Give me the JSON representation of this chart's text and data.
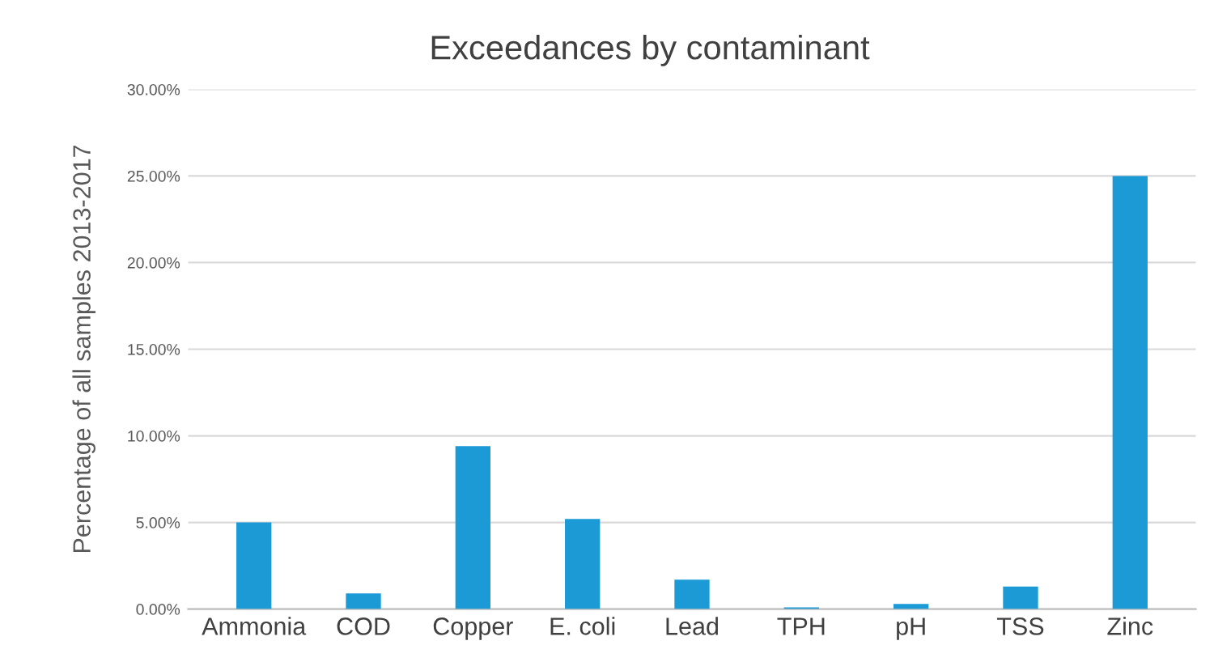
{
  "chart_data": {
    "type": "bar",
    "title": "Exceedances by contaminant",
    "ylabel": "Percentage of all samples 2013-2017",
    "categories": [
      "Ammonia",
      "COD",
      "Copper",
      "E. coli",
      "Lead",
      "TPH",
      "pH",
      "TSS",
      "Zinc"
    ],
    "values": [
      5.0,
      0.9,
      9.4,
      5.2,
      1.7,
      0.1,
      0.3,
      1.3,
      25.0
    ],
    "color": "#1b9ad6",
    "ylim": [
      0,
      30
    ],
    "yticks": [
      {
        "value": 0,
        "label": "0.00%"
      },
      {
        "value": 5,
        "label": "5.00%"
      },
      {
        "value": 10,
        "label": "10.00%"
      },
      {
        "value": 15,
        "label": "15.00%"
      },
      {
        "value": 20,
        "label": "20.00%"
      },
      {
        "value": 25,
        "label": "25.00%"
      },
      {
        "value": 30,
        "label": "30.00%"
      }
    ],
    "grid": "y"
  }
}
